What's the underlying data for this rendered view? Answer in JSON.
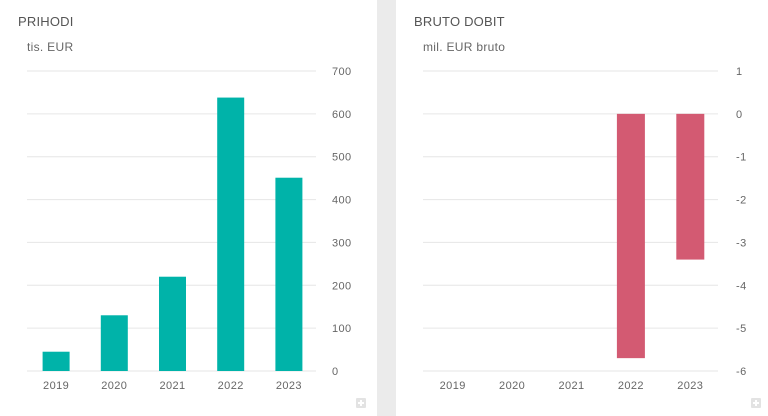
{
  "charts": [
    {
      "title": "PRIHODI",
      "subtitle": "tis. EUR",
      "color": "#00b3a9",
      "chart_data": {
        "type": "bar",
        "title": "PRIHODI",
        "ylabel": "tis. EUR",
        "categories": [
          "2019",
          "2020",
          "2021",
          "2022",
          "2023"
        ],
        "values": [
          45,
          130,
          220,
          638,
          451
        ],
        "ylim": [
          0,
          700
        ],
        "yticks": [
          0,
          100,
          200,
          300,
          400,
          500,
          600,
          700
        ],
        "grid": true,
        "y_axis_side": "right"
      }
    },
    {
      "title": "BRUTO DOBIT",
      "subtitle": "mil. EUR bruto",
      "color": "#d35a72",
      "chart_data": {
        "type": "bar",
        "title": "BRUTO DOBIT",
        "ylabel": "mil. EUR bruto",
        "categories": [
          "2019",
          "2020",
          "2021",
          "2022",
          "2023"
        ],
        "values": [
          0,
          0,
          0,
          -5.7,
          -3.4
        ],
        "ylim": [
          -6,
          1
        ],
        "yticks": [
          1,
          0,
          -1,
          -2,
          -3,
          -4,
          -5,
          -6
        ],
        "grid": true,
        "y_axis_side": "right"
      }
    }
  ]
}
